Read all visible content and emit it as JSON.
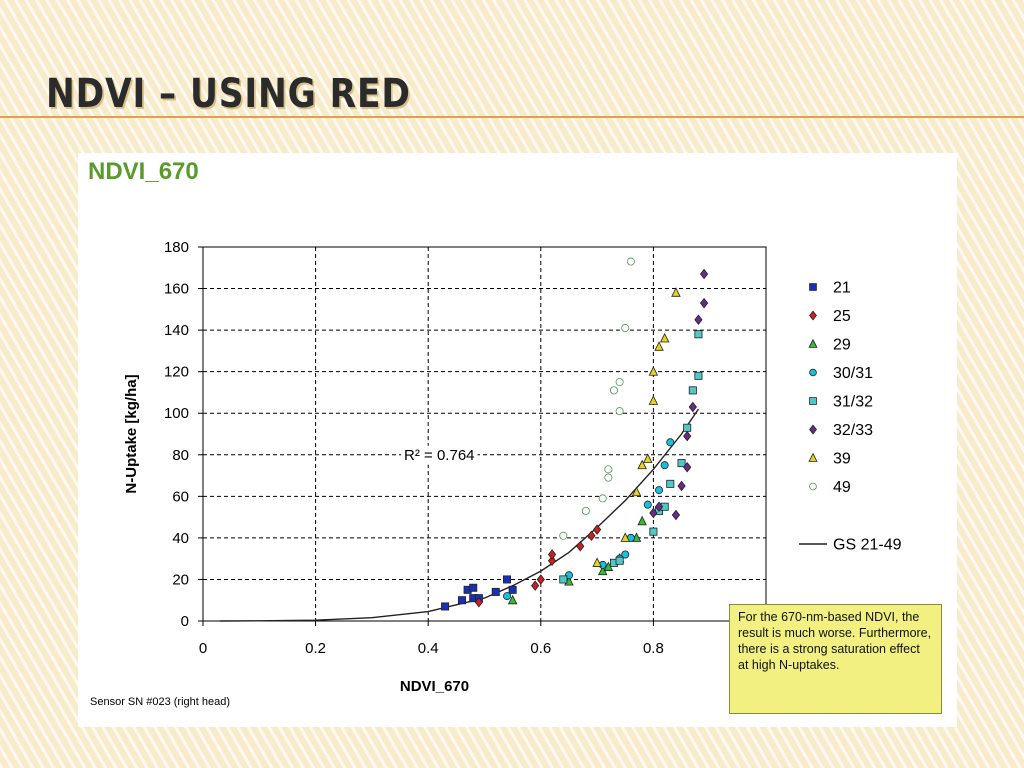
{
  "slide": {
    "title": "NDVI – using red"
  },
  "note": "For the 670-nm-based NDVI, the result is much worse. Furthermore, there is a strong saturation effect at high N-uptakes.",
  "chart_data": {
    "type": "scatter",
    "title": "NDVI_670",
    "title_color": "#5a9a2a",
    "xlabel": "NDVI_670",
    "ylabel": "N-Uptake [kg/ha]",
    "source": "Sensor SN #023 (right head)",
    "xlim": [
      0,
      1.0
    ],
    "ylim": [
      0,
      180
    ],
    "xticks": [
      0,
      0.2,
      0.4,
      0.6,
      0.8
    ],
    "yticks": [
      0,
      20,
      40,
      60,
      80,
      100,
      120,
      140,
      160,
      180
    ],
    "grid": true,
    "legend_position": "right",
    "annotation": {
      "text": "R² = 0.764",
      "x": 0.35,
      "y": 80
    },
    "series": [
      {
        "name": "21",
        "marker": "square",
        "color": "#1a2fb8",
        "points": [
          [
            0.43,
            7
          ],
          [
            0.46,
            10
          ],
          [
            0.47,
            15
          ],
          [
            0.48,
            16
          ],
          [
            0.48,
            11
          ],
          [
            0.49,
            11
          ],
          [
            0.52,
            14
          ],
          [
            0.54,
            20
          ],
          [
            0.55,
            15
          ]
        ]
      },
      {
        "name": "25",
        "marker": "diamond",
        "color": "#cc2020",
        "points": [
          [
            0.49,
            9
          ],
          [
            0.59,
            17
          ],
          [
            0.6,
            20
          ],
          [
            0.62,
            29
          ],
          [
            0.62,
            32
          ],
          [
            0.67,
            36
          ],
          [
            0.69,
            41
          ],
          [
            0.7,
            44
          ]
        ]
      },
      {
        "name": "29",
        "marker": "triangle",
        "color": "#3ab83a",
        "points": [
          [
            0.55,
            10
          ],
          [
            0.65,
            19
          ],
          [
            0.71,
            24
          ],
          [
            0.72,
            26
          ],
          [
            0.74,
            30
          ],
          [
            0.77,
            40
          ],
          [
            0.78,
            48
          ]
        ]
      },
      {
        "name": "30/31",
        "marker": "circle",
        "color": "#18c0e0",
        "points": [
          [
            0.54,
            12
          ],
          [
            0.65,
            22
          ],
          [
            0.71,
            27
          ],
          [
            0.74,
            30
          ],
          [
            0.75,
            32
          ],
          [
            0.76,
            40
          ],
          [
            0.79,
            56
          ],
          [
            0.81,
            63
          ],
          [
            0.82,
            75
          ],
          [
            0.83,
            86
          ]
        ]
      },
      {
        "name": "31/32",
        "marker": "square",
        "color": "#50c8c8",
        "points": [
          [
            0.64,
            20
          ],
          [
            0.73,
            28
          ],
          [
            0.74,
            29
          ],
          [
            0.8,
            43
          ],
          [
            0.81,
            53
          ],
          [
            0.82,
            55
          ],
          [
            0.83,
            66
          ],
          [
            0.85,
            76
          ],
          [
            0.86,
            93
          ],
          [
            0.87,
            111
          ],
          [
            0.88,
            118
          ],
          [
            0.88,
            138
          ]
        ]
      },
      {
        "name": "32/33",
        "marker": "diamond",
        "color": "#6a2a8a",
        "points": [
          [
            0.8,
            52
          ],
          [
            0.81,
            55
          ],
          [
            0.84,
            51
          ],
          [
            0.85,
            65
          ],
          [
            0.86,
            74
          ],
          [
            0.86,
            89
          ],
          [
            0.87,
            103
          ],
          [
            0.88,
            145
          ],
          [
            0.89,
            153
          ],
          [
            0.89,
            167
          ]
        ]
      },
      {
        "name": "39",
        "marker": "triangle",
        "color": "#e8d020",
        "points": [
          [
            0.7,
            28
          ],
          [
            0.75,
            40
          ],
          [
            0.77,
            62
          ],
          [
            0.78,
            75
          ],
          [
            0.79,
            78
          ],
          [
            0.8,
            106
          ],
          [
            0.8,
            120
          ],
          [
            0.81,
            132
          ],
          [
            0.82,
            136
          ],
          [
            0.84,
            158
          ]
        ]
      },
      {
        "name": "49",
        "marker": "circle",
        "color": "#ffffff",
        "stroke": "#4a9a4a",
        "points": [
          [
            0.64,
            41
          ],
          [
            0.68,
            53
          ],
          [
            0.71,
            59
          ],
          [
            0.72,
            69
          ],
          [
            0.72,
            73
          ],
          [
            0.73,
            111
          ],
          [
            0.74,
            115
          ],
          [
            0.74,
            101
          ],
          [
            0.75,
            141
          ],
          [
            0.76,
            173
          ]
        ]
      }
    ],
    "trendline": {
      "name": "GS 21-49",
      "points": [
        [
          0.03,
          0
        ],
        [
          0.1,
          0.1
        ],
        [
          0.2,
          0.4
        ],
        [
          0.3,
          1.6
        ],
        [
          0.4,
          4.5
        ],
        [
          0.5,
          11
        ],
        [
          0.55,
          17
        ],
        [
          0.6,
          24
        ],
        [
          0.65,
          33
        ],
        [
          0.7,
          45
        ],
        [
          0.75,
          58
        ],
        [
          0.8,
          73
        ],
        [
          0.85,
          90
        ],
        [
          0.88,
          102
        ]
      ]
    }
  }
}
